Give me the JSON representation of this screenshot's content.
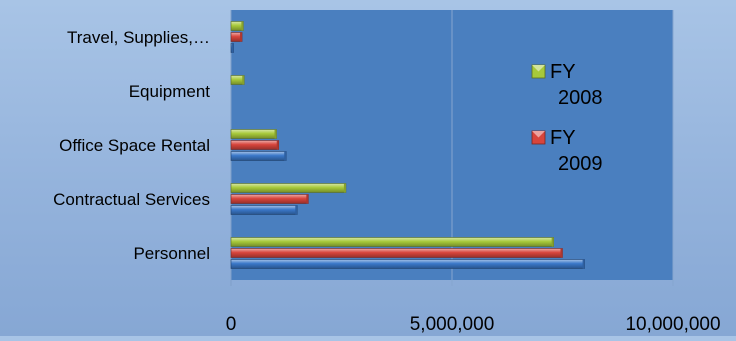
{
  "chart_data": {
    "type": "bar",
    "orientation": "horizontal",
    "categories": [
      "Personnel",
      "Contractual Services",
      "Office Space Rental",
      "Equipment",
      "Travel, Supplies,…"
    ],
    "series": [
      {
        "name": "",
        "color": "#3a78c9",
        "values": [
          8000000,
          1500000,
          1250000,
          0,
          60000
        ]
      },
      {
        "name": "FY 2009",
        "color": "#d8453c",
        "values": [
          7500000,
          1750000,
          1080000,
          0,
          250000
        ]
      },
      {
        "name": "FY 2008",
        "color": "#a7c93a",
        "values": [
          7300000,
          2600000,
          1030000,
          300000,
          280000
        ]
      }
    ],
    "x_ticks": [
      "0",
      "5,000,000",
      "10,000,000"
    ],
    "xlim": [
      0,
      10000000
    ],
    "xgrid": true,
    "legend": {
      "position": "right",
      "entries": [
        {
          "label_lines": [
            "FY",
            "2008"
          ],
          "color": "#a7c93a"
        },
        {
          "label_lines": [
            "FY",
            "2009"
          ],
          "color": "#d8453c"
        }
      ]
    },
    "plot_background": "#4a7fbf"
  }
}
